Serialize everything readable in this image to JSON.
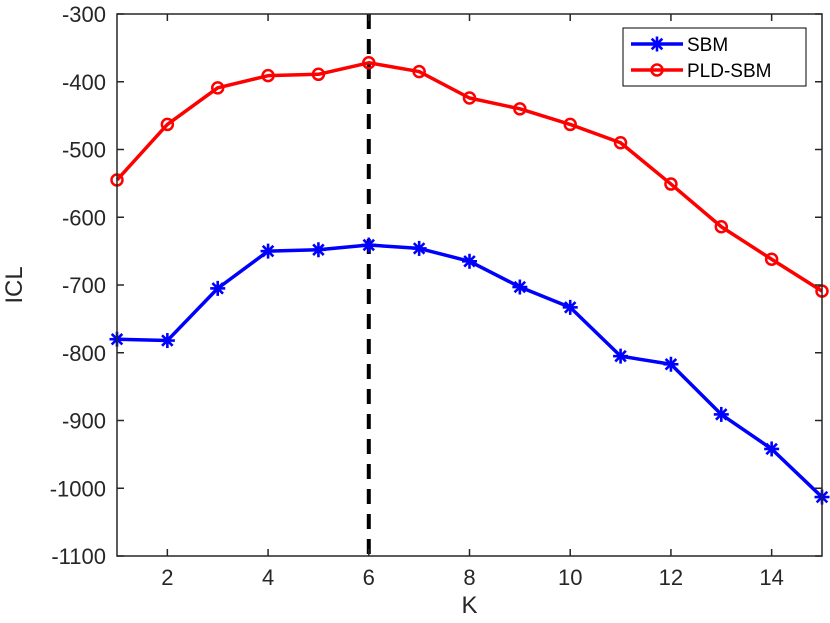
{
  "chart_data": {
    "type": "line",
    "xlabel": "K",
    "ylabel": "ICL",
    "xlim": [
      1,
      15
    ],
    "ylim": [
      -1100,
      -300
    ],
    "x_ticks": [
      2,
      4,
      6,
      8,
      10,
      12,
      14
    ],
    "y_ticks": [
      -300,
      -400,
      -500,
      -600,
      -700,
      -800,
      -900,
      -1000,
      -1100
    ],
    "x": [
      1,
      2,
      3,
      4,
      5,
      6,
      7,
      8,
      9,
      10,
      11,
      12,
      13,
      14,
      15
    ],
    "series": [
      {
        "name": "SBM",
        "color": "#0000ff",
        "marker": "asterisk",
        "values": [
          -780,
          -782,
          -705,
          -650,
          -648,
          -641,
          -646,
          -665,
          -703,
          -733,
          -805,
          -817,
          -891,
          -942,
          -1013
        ]
      },
      {
        "name": "PLD-SBM",
        "color": "#ff0000",
        "marker": "circle",
        "values": [
          -545,
          -463,
          -409,
          -391,
          -389,
          -372,
          -385,
          -424,
          -440,
          -463,
          -490,
          -551,
          -614,
          -662,
          -709
        ]
      }
    ],
    "reference_line": {
      "x": 6,
      "style": "dashed",
      "color": "#000000"
    },
    "grid": false,
    "legend_position": "top-right"
  }
}
